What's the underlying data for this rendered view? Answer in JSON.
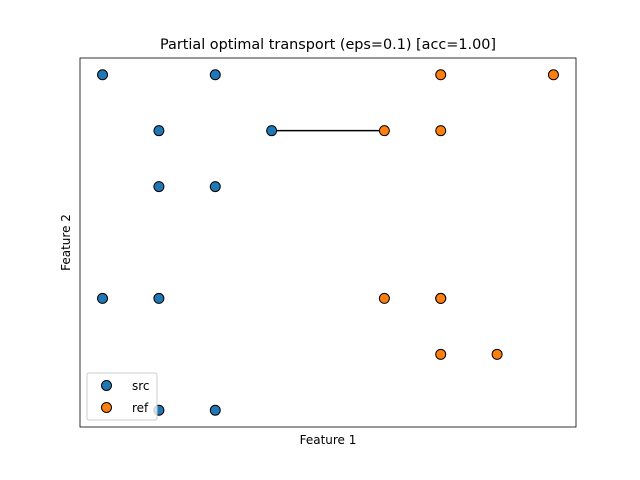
{
  "chart_data": {
    "type": "scatter",
    "title": "Partial optimal transport (eps=0.1) [acc=1.00]",
    "xlabel": "Feature 1",
    "ylabel": "Feature 2",
    "xlim": [
      -0.4,
      8.4
    ],
    "ylim": [
      -0.3,
      6.3
    ],
    "grid": false,
    "legend_position": "lower-left",
    "series": [
      {
        "name": "src",
        "color": "#1f77b4",
        "points": [
          [
            0,
            6
          ],
          [
            2,
            6
          ],
          [
            1,
            5
          ],
          [
            3,
            5
          ],
          [
            1,
            4
          ],
          [
            2,
            4
          ],
          [
            0,
            2
          ],
          [
            1,
            2
          ],
          [
            1,
            0
          ],
          [
            2,
            0
          ]
        ]
      },
      {
        "name": "ref",
        "color": "#ff7f0e",
        "points": [
          [
            6,
            6
          ],
          [
            8,
            6
          ],
          [
            5,
            5
          ],
          [
            6,
            5
          ],
          [
            5,
            2
          ],
          [
            6,
            2
          ],
          [
            6,
            2
          ],
          [
            6,
            1
          ],
          [
            7,
            1
          ]
        ]
      }
    ],
    "transport_lines": [
      {
        "from": [
          3,
          5
        ],
        "to": [
          5,
          5
        ]
      }
    ]
  }
}
